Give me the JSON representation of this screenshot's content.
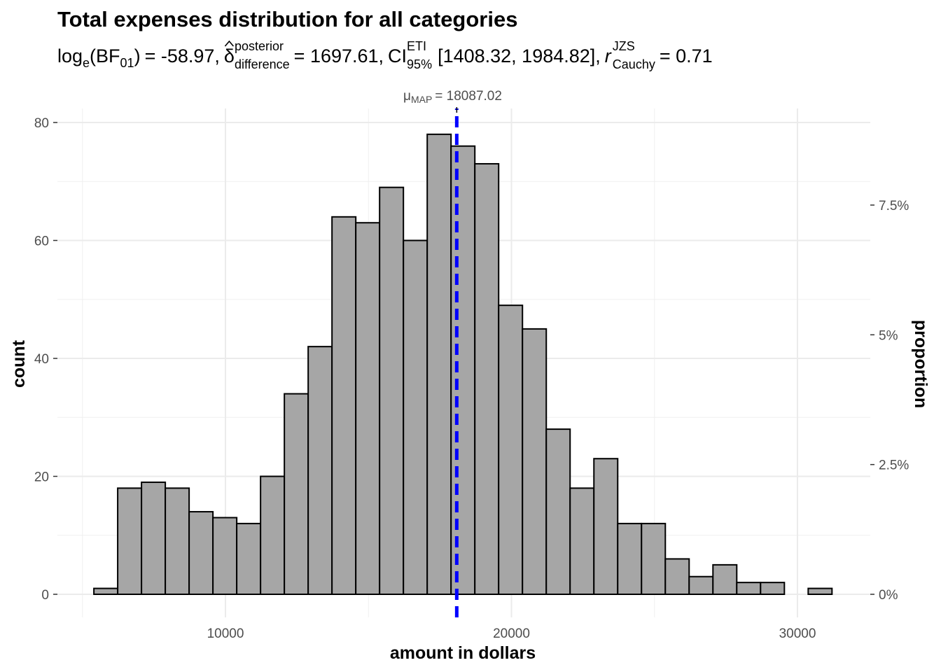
{
  "chart_data": {
    "type": "bar",
    "subtype": "histogram",
    "title": "Total expenses distribution for all categories",
    "subtitle": {
      "log_bf_label": "log",
      "log_bf_sub": "e",
      "bf_label": "(BF",
      "bf_sub": "01",
      "bf_close": ")",
      "bf_value": "= -58.97,",
      "delta_symbol": "δ",
      "delta_sup": "posterior",
      "delta_sub": "difference",
      "delta_value": "= 1697.61,",
      "ci_label": "CI",
      "ci_sup": "ETI",
      "ci_sub": "95%",
      "ci_value": "[1408.32, 1984.82],",
      "r_label": "r",
      "r_sup": "JZS",
      "r_sub": "Cauchy",
      "r_value": "= 0.71"
    },
    "xlabel": "amount in dollars",
    "ylabel": "count",
    "y2label": "proportion",
    "xlim": [
      4000,
      32500
    ],
    "ylim": [
      -4,
      83
    ],
    "x_ticks": [
      10000,
      20000,
      30000
    ],
    "x_tick_labels": [
      "10000",
      "20000",
      "30000"
    ],
    "y_ticks": [
      0,
      20,
      40,
      60,
      80
    ],
    "y_tick_labels": [
      "0",
      "20",
      "40",
      "60",
      "80"
    ],
    "y2_ticks": [
      0,
      0.025,
      0.05,
      0.075
    ],
    "y2_tick_labels": [
      "0%",
      "2.5%",
      "5%",
      "7.5%"
    ],
    "total_n": 880,
    "bin_start": 5400,
    "binwidth": 832.5,
    "counts": [
      1,
      18,
      19,
      18,
      14,
      13,
      12,
      20,
      34,
      42,
      64,
      63,
      69,
      60,
      78,
      76,
      73,
      49,
      45,
      28,
      18,
      23,
      12,
      12,
      6,
      3,
      5,
      2,
      2,
      0,
      1
    ],
    "centrality_line": {
      "value": 18087.02,
      "label_sym": "μ",
      "label_sub": "MAP",
      "label_value": "= 18087.02",
      "color": "#0000ff"
    },
    "bar_fill": "#a6a6a6",
    "bar_stroke": "#000000",
    "grid": true
  }
}
